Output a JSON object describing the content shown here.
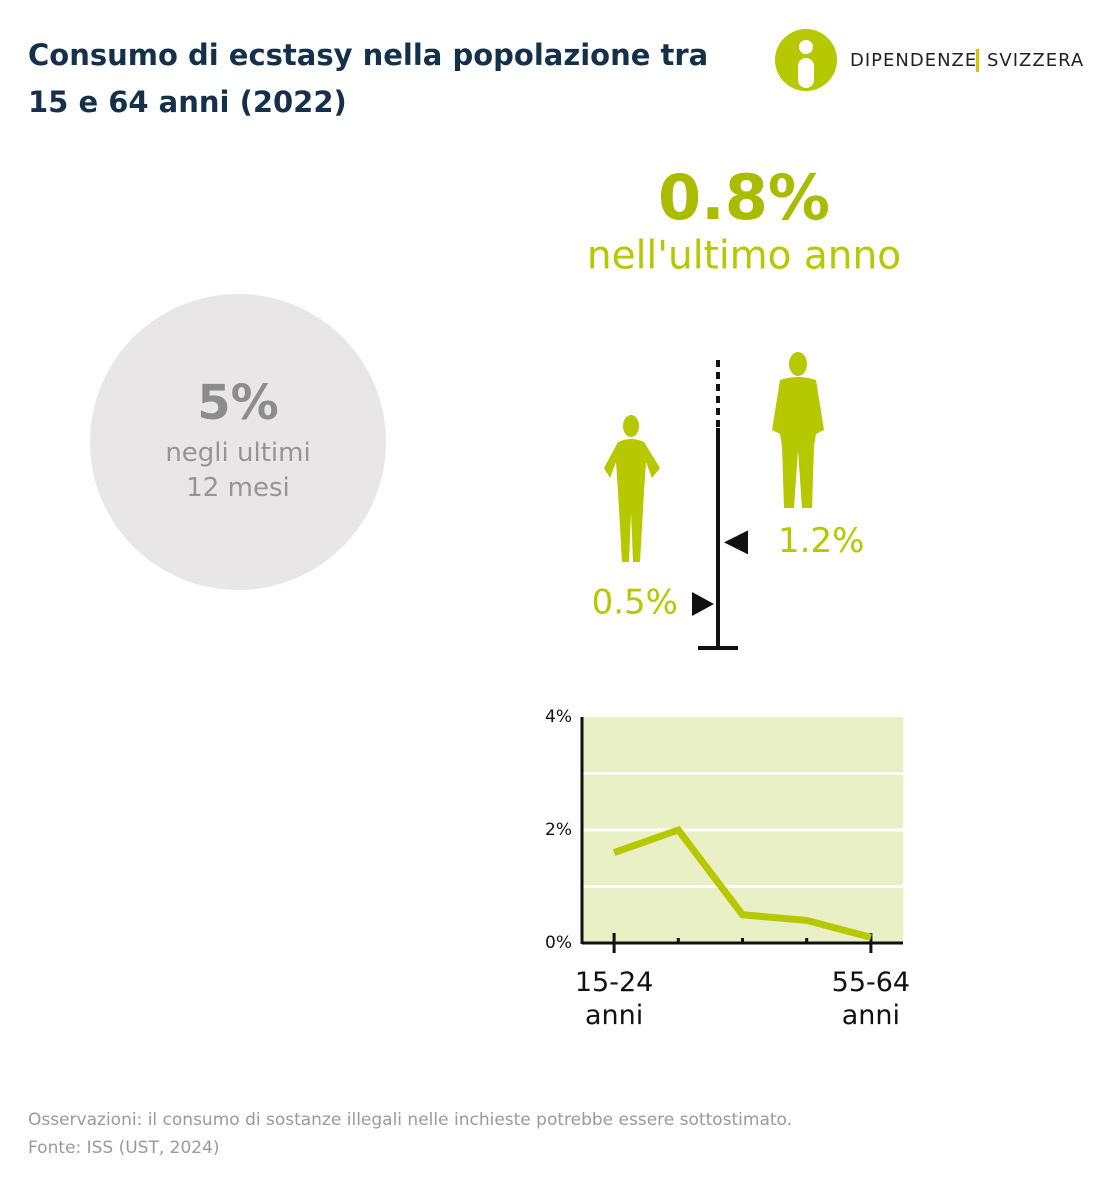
{
  "header": {
    "title": "Consumo di ecstasy nella popolazione tra 15 e 64 anni (2022)",
    "logo": [
      "DIPENDENZE",
      "SVIZZERA"
    ]
  },
  "headline": {
    "value": "0.8%",
    "label": "nell'ultimo anno"
  },
  "circle": {
    "value": "5%",
    "label": "negli ultimi 12 mesi"
  },
  "chart_data": [
    {
      "type": "marker",
      "values": [
        0.5,
        1.2
      ],
      "value_labels": [
        "0.5%",
        "1.2%"
      ],
      "color": "#b5c800"
    },
    {
      "type": "line",
      "categories": [
        "15-24 anni",
        null,
        null,
        null,
        "55-64 anni"
      ],
      "values": [
        1.6,
        2.0,
        0.5,
        0.4,
        0.1
      ],
      "color": "#b5c800",
      "ylim": [
        0,
        4
      ],
      "yticks": [
        {
          "value": 0,
          "label": "0%"
        },
        {
          "value": 2,
          "label": "2%"
        },
        {
          "value": 4,
          "label": "4%"
        }
      ],
      "ygrid": [
        1,
        2,
        3
      ]
    }
  ],
  "notes": [
    "Osservazioni: il consumo di sostanze illegali nelle inchieste potrebbe essere sottostimato.",
    "Fonte: ISS (UST, 2024)"
  ]
}
